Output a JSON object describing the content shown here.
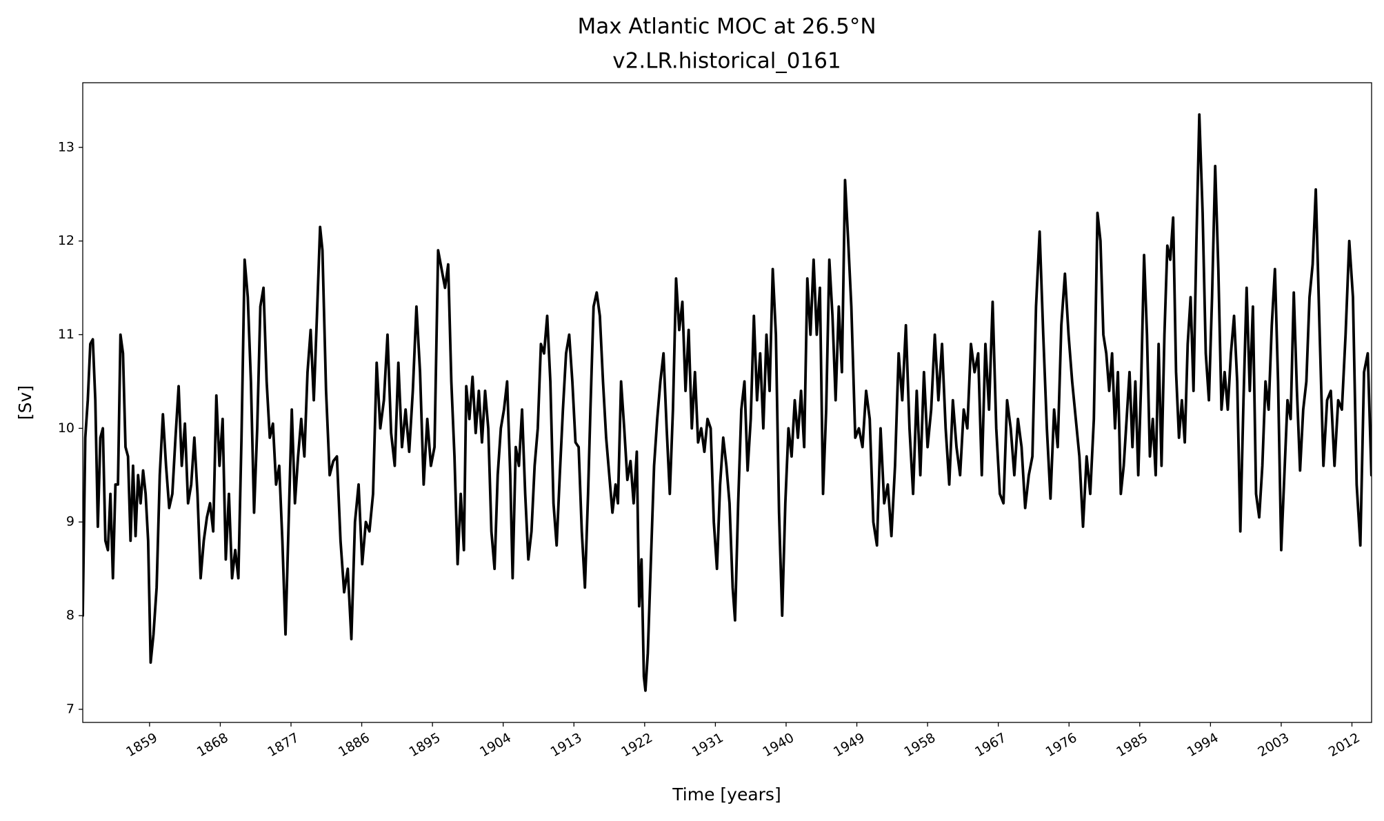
{
  "chart_data": {
    "type": "line",
    "title": "Max Atlantic MOC at 26.5°N",
    "subtitle": "v2.LR.historical_0161",
    "xlabel": "Time [years]",
    "ylabel": "[Sv]",
    "color": "#000000",
    "grid": false,
    "xlim": [
      1850.5,
      2014.5
    ],
    "ylim": [
      6.86,
      13.69
    ],
    "xticks": [
      1859,
      1868,
      1877,
      1886,
      1895,
      1904,
      1913,
      1922,
      1931,
      1940,
      1949,
      1958,
      1967,
      1976,
      1985,
      1994,
      2003,
      2012
    ],
    "yticks": [
      7,
      8,
      9,
      10,
      11,
      12,
      13
    ],
    "x": [
      1850.5,
      1850.82,
      1851.14,
      1851.46,
      1851.78,
      1852.1,
      1852.42,
      1852.74,
      1853.06,
      1853.38,
      1853.7,
      1854.02,
      1854.34,
      1854.66,
      1854.98,
      1855.3,
      1855.62,
      1855.94,
      1856.26,
      1856.58,
      1856.9,
      1857.22,
      1857.54,
      1857.86,
      1858.18,
      1858.5,
      1858.82,
      1859.14,
      1859.5,
      1859.9,
      1860.3,
      1860.7,
      1861.1,
      1861.5,
      1861.9,
      1862.3,
      1862.7,
      1863.1,
      1863.5,
      1863.9,
      1864.3,
      1864.7,
      1865.1,
      1865.5,
      1865.9,
      1866.3,
      1866.7,
      1867.1,
      1867.5,
      1867.9,
      1868.3,
      1868.7,
      1869.1,
      1869.5,
      1869.9,
      1870.3,
      1870.7,
      1871.1,
      1871.5,
      1871.9,
      1872.3,
      1872.7,
      1873.1,
      1873.5,
      1873.9,
      1874.3,
      1874.7,
      1875.1,
      1875.5,
      1875.9,
      1876.3,
      1876.7,
      1877.1,
      1877.5,
      1877.9,
      1878.3,
      1878.7,
      1879.1,
      1879.5,
      1879.9,
      1880.3,
      1880.7,
      1881.0,
      1881.46,
      1881.92,
      1882.38,
      1882.84,
      1883.3,
      1883.76,
      1884.22,
      1884.68,
      1885.14,
      1885.6,
      1886.06,
      1886.52,
      1886.98,
      1887.44,
      1887.9,
      1888.36,
      1888.82,
      1889.28,
      1889.74,
      1890.2,
      1890.66,
      1891.12,
      1891.58,
      1892.04,
      1892.5,
      1892.96,
      1893.42,
      1893.88,
      1894.34,
      1894.8,
      1895.26,
      1895.72,
      1896.6,
      1897.0,
      1897.4,
      1897.8,
      1898.2,
      1898.6,
      1899.0,
      1899.3,
      1899.7,
      1900.1,
      1900.5,
      1900.9,
      1901.3,
      1901.7,
      1902.1,
      1902.5,
      1902.9,
      1903.3,
      1903.7,
      1904.1,
      1904.5,
      1904.9,
      1905.2,
      1905.6,
      1906.0,
      1906.4,
      1906.8,
      1907.2,
      1907.6,
      1908.0,
      1908.4,
      1908.8,
      1909.2,
      1909.6,
      1910.0,
      1910.4,
      1910.8,
      1911.2,
      1911.6,
      1912.0,
      1912.4,
      1912.8,
      1913.2,
      1913.6,
      1914.0,
      1914.4,
      1914.8,
      1915.1,
      1915.5,
      1915.9,
      1916.3,
      1916.7,
      1917.1,
      1917.5,
      1917.9,
      1918.3,
      1918.6,
      1919.0,
      1919.4,
      1919.8,
      1920.2,
      1920.6,
      1921.0,
      1921.3,
      1921.6,
      1921.9,
      1922.1,
      1922.4,
      1922.8,
      1923.2,
      1923.6,
      1924.0,
      1924.4,
      1924.8,
      1925.2,
      1925.6,
      1926.0,
      1926.4,
      1926.8,
      1927.2,
      1927.6,
      1928.0,
      1928.4,
      1928.8,
      1929.2,
      1929.6,
      1930.0,
      1930.4,
      1930.8,
      1931.2,
      1931.6,
      1932.0,
      1932.4,
      1932.8,
      1933.2,
      1933.5,
      1933.9,
      1934.3,
      1934.7,
      1935.1,
      1935.5,
      1935.9,
      1936.3,
      1936.7,
      1937.1,
      1937.5,
      1937.9,
      1938.3,
      1938.7,
      1939.1,
      1939.5,
      1939.9,
      1940.3,
      1940.7,
      1941.1,
      1941.5,
      1941.9,
      1942.3,
      1942.7,
      1943.1,
      1943.5,
      1943.9,
      1944.3,
      1944.7,
      1945.1,
      1945.5,
      1945.9,
      1946.3,
      1946.7,
      1947.1,
      1947.5,
      1947.9,
      1948.3,
      1948.8,
      1949.26,
      1949.72,
      1950.18,
      1950.64,
      1951.1,
      1951.56,
      1952.02,
      1952.48,
      1952.94,
      1953.4,
      1953.86,
      1954.32,
      1954.78,
      1955.24,
      1955.7,
      1956.16,
      1956.62,
      1957.08,
      1957.54,
      1958.0,
      1958.46,
      1958.92,
      1959.38,
      1959.84,
      1960.3,
      1960.76,
      1961.22,
      1961.68,
      1962.14,
      1962.6,
      1963.06,
      1963.52,
      1963.98,
      1964.44,
      1964.9,
      1965.36,
      1965.82,
      1966.28,
      1966.74,
      1967.2,
      1967.66,
      1968.12,
      1968.58,
      1969.04,
      1969.5,
      1969.96,
      1970.42,
      1970.88,
      1971.34,
      1971.8,
      1972.26,
      1972.72,
      1973.18,
      1973.64,
      1974.1,
      1974.56,
      1975.02,
      1975.48,
      1975.94,
      1976.4,
      1976.86,
      1977.32,
      1977.78,
      1978.24,
      1978.7,
      1979.16,
      1979.62,
      1980.0,
      1980.37,
      1980.74,
      1981.11,
      1981.48,
      1981.85,
      1982.22,
      1982.59,
      1982.96,
      1983.33,
      1983.7,
      1984.07,
      1984.44,
      1984.81,
      1985.18,
      1985.55,
      1985.92,
      1986.29,
      1986.66,
      1987.03,
      1987.4,
      1987.77,
      1988.14,
      1988.51,
      1988.88,
      1989.25,
      1989.62,
      1989.99,
      1990.36,
      1990.73,
      1991.1,
      1991.47,
      1991.84,
      1992.21,
      1992.58,
      1993.0,
      1993.4,
      1993.8,
      1994.2,
      1994.6,
      1995.0,
      1995.4,
      1995.8,
      1996.2,
      1996.6,
      1997.0,
      1997.4,
      1997.8,
      1998.2,
      1998.6,
      1999.0,
      1999.4,
      1999.8,
      2000.2,
      2000.6,
      2001.0,
      2001.4,
      2001.8,
      2002.2,
      2002.6,
      2003.0,
      2003.4,
      2003.8,
      2004.2,
      2004.6,
      2005.0,
      2005.4,
      2005.8,
      2006.2,
      2006.6,
      2007.0,
      2007.4,
      2007.9,
      2008.37,
      2008.84,
      2009.31,
      2009.78,
      2010.25,
      2010.72,
      2011.19,
      2011.66,
      2012.13,
      2012.6,
      2013.07,
      2013.54,
      2014.01,
      2014.48
    ],
    "values": [
      8.0,
      9.9,
      10.3,
      10.9,
      10.95,
      10.3,
      8.95,
      9.9,
      10.0,
      8.8,
      8.7,
      9.3,
      8.4,
      9.4,
      9.4,
      11.0,
      10.8,
      9.8,
      9.7,
      8.8,
      9.6,
      8.85,
      9.5,
      9.2,
      9.55,
      9.3,
      8.8,
      7.5,
      7.8,
      8.3,
      9.5,
      10.15,
      9.6,
      9.15,
      9.3,
      9.9,
      10.45,
      9.6,
      10.05,
      9.2,
      9.4,
      9.9,
      9.3,
      8.4,
      8.8,
      9.05,
      9.2,
      8.9,
      10.35,
      9.6,
      10.1,
      8.6,
      9.3,
      8.4,
      8.7,
      8.4,
      9.9,
      11.8,
      11.4,
      10.5,
      9.1,
      10.0,
      11.3,
      11.5,
      10.5,
      9.9,
      10.05,
      9.4,
      9.6,
      8.8,
      7.8,
      9.0,
      10.2,
      9.2,
      9.7,
      10.1,
      9.7,
      10.6,
      11.05,
      10.3,
      11.2,
      12.15,
      11.9,
      10.4,
      9.5,
      9.65,
      9.7,
      8.8,
      8.25,
      8.5,
      7.75,
      9.0,
      9.4,
      8.55,
      9.0,
      8.9,
      9.3,
      10.7,
      10.0,
      10.3,
      11.0,
      9.95,
      9.6,
      10.7,
      9.8,
      10.2,
      9.75,
      10.4,
      11.3,
      10.6,
      9.4,
      10.1,
      9.6,
      9.8,
      11.9,
      11.5,
      11.75,
      10.5,
      9.7,
      8.55,
      9.3,
      8.7,
      10.45,
      10.1,
      10.55,
      9.95,
      10.4,
      9.85,
      10.4,
      10.0,
      8.9,
      8.5,
      9.5,
      10.0,
      10.2,
      10.5,
      9.5,
      8.4,
      9.8,
      9.6,
      10.2,
      9.3,
      8.6,
      8.9,
      9.6,
      10.0,
      10.9,
      10.8,
      11.2,
      10.5,
      9.2,
      8.75,
      9.5,
      10.2,
      10.8,
      11.0,
      10.5,
      9.85,
      9.8,
      8.9,
      8.3,
      9.3,
      10.2,
      11.3,
      11.45,
      11.2,
      10.5,
      9.9,
      9.5,
      9.1,
      9.4,
      9.2,
      10.5,
      10.0,
      9.45,
      9.65,
      9.2,
      9.75,
      8.1,
      8.6,
      7.35,
      7.2,
      7.6,
      8.6,
      9.6,
      10.1,
      10.5,
      10.8,
      10.0,
      9.3,
      10.2,
      11.6,
      11.05,
      11.35,
      10.4,
      11.05,
      10.0,
      10.6,
      9.85,
      10.0,
      9.75,
      10.1,
      10.0,
      9.0,
      8.5,
      9.4,
      9.9,
      9.6,
      9.2,
      8.3,
      7.95,
      9.2,
      10.2,
      10.5,
      9.55,
      10.1,
      11.2,
      10.3,
      10.8,
      10.0,
      11.0,
      10.4,
      11.7,
      11.0,
      9.1,
      8.0,
      9.2,
      10.0,
      9.7,
      10.3,
      9.9,
      10.4,
      9.8,
      11.6,
      11.0,
      11.8,
      11.0,
      11.5,
      9.3,
      10.2,
      11.8,
      11.2,
      10.3,
      11.3,
      10.6,
      12.65,
      12.0,
      11.3,
      9.9,
      10.0,
      9.8,
      10.4,
      10.1,
      9.0,
      8.75,
      10.0,
      9.2,
      9.4,
      8.85,
      9.6,
      10.8,
      10.3,
      11.1,
      10.0,
      9.3,
      10.4,
      9.5,
      10.6,
      9.8,
      10.2,
      11.0,
      10.3,
      10.9,
      10.0,
      9.4,
      10.3,
      9.8,
      9.5,
      10.2,
      10.0,
      10.9,
      10.6,
      10.8,
      9.5,
      10.9,
      10.2,
      11.35,
      10.0,
      9.3,
      9.2,
      10.3,
      10.0,
      9.5,
      10.1,
      9.8,
      9.15,
      9.5,
      9.7,
      11.3,
      12.1,
      11.0,
      10.0,
      9.25,
      10.2,
      9.8,
      11.1,
      11.65,
      11.0,
      10.5,
      10.1,
      9.7,
      8.95,
      9.7,
      9.3,
      10.1,
      12.3,
      12.0,
      11.0,
      10.8,
      10.4,
      10.8,
      10.0,
      10.6,
      9.3,
      9.6,
      10.1,
      10.6,
      9.8,
      10.5,
      9.5,
      10.5,
      11.85,
      11.0,
      9.7,
      10.1,
      9.5,
      10.9,
      9.6,
      11.0,
      11.95,
      11.8,
      12.25,
      10.6,
      9.9,
      10.3,
      9.85,
      10.9,
      11.4,
      10.4,
      12.0,
      13.35,
      12.3,
      10.8,
      10.3,
      11.4,
      12.8,
      11.7,
      10.2,
      10.6,
      10.2,
      10.8,
      11.2,
      10.5,
      8.9,
      10.3,
      11.5,
      10.4,
      11.3,
      9.3,
      9.05,
      9.6,
      10.5,
      10.2,
      11.1,
      11.7,
      10.5,
      8.7,
      9.5,
      10.3,
      10.1,
      11.45,
      10.4,
      9.55,
      10.2,
      10.5,
      11.4,
      11.75,
      12.55,
      11.0,
      9.6,
      10.3,
      10.4,
      9.6,
      10.3,
      10.2,
      11.0,
      12.0,
      11.4,
      9.4,
      8.75,
      10.6,
      10.8,
      9.5
    ]
  }
}
